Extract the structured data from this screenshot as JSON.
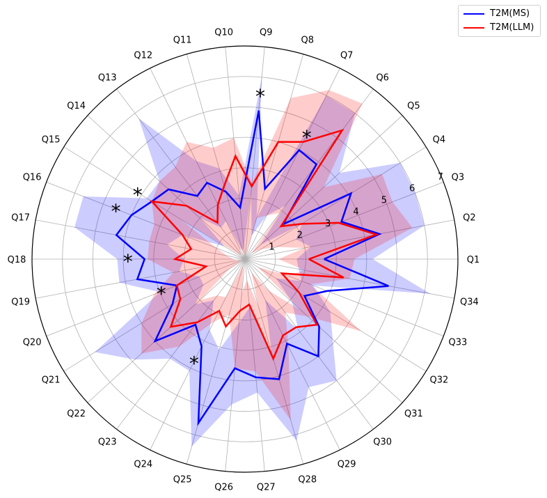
{
  "chart_data": {
    "type": "radar",
    "categories": [
      "Q1",
      "Q2",
      "Q3",
      "Q4",
      "Q5",
      "Q6",
      "Q7",
      "Q8",
      "Q9",
      "Q10",
      "Q11",
      "Q12",
      "Q13",
      "Q14",
      "Q15",
      "Q16",
      "Q17",
      "Q18",
      "Q19",
      "Q20",
      "Q21",
      "Q22",
      "Q23",
      "Q24",
      "Q25",
      "Q26",
      "Q27",
      "Q28",
      "Q29",
      "Q30",
      "Q31",
      "Q32",
      "Q33",
      "Q34"
    ],
    "r_ticks": [
      "1",
      "2",
      "3",
      "4",
      "5",
      "6",
      "7"
    ],
    "r_range": [
      0,
      7
    ],
    "grid": true,
    "legend_position": "top-right",
    "series": [
      {
        "name": "T2M(MS)",
        "color": "#0000ff",
        "values": [
          2.6,
          4.5,
          3.4,
          4.1,
          1.7,
          3.9,
          4.0,
          2.4,
          4.9,
          1.7,
          2.3,
          2.8,
          2.6,
          3.4,
          3.6,
          4.0,
          4.3,
          3.3,
          3.6,
          2.4,
          2.8,
          4.0,
          2.7,
          3.2,
          5.6,
          3.6,
          3.9,
          4.1,
          3.1,
          4.0,
          3.3,
          2.3,
          2.9,
          4.8
        ],
        "band_min": [
          1.7,
          2.2,
          1.8,
          2.2,
          0.7,
          2.2,
          1.6,
          0.8,
          2.2,
          0.4,
          0.3,
          1.4,
          1.3,
          2.0,
          0.8,
          2.2,
          2.6,
          2.0,
          2.2,
          1.6,
          1.6,
          2.2,
          1.7,
          2.6,
          3.1,
          2.1,
          1.6,
          3.2,
          1.5,
          2.9,
          2.1,
          1.2,
          2.0,
          1.8
        ],
        "band_max": [
          4.2,
          6.0,
          6.0,
          6.0,
          4.2,
          6.0,
          6.0,
          1.4,
          6.0,
          2.1,
          3.1,
          3.6,
          5.8,
          3.8,
          3.8,
          5.7,
          5.7,
          4.2,
          4.2,
          3.0,
          5.8,
          4.9,
          4.1,
          4.1,
          6.4,
          4.8,
          4.4,
          6.2,
          4.7,
          5.0,
          3.9,
          3.3,
          2.4,
          6.2
        ]
      },
      {
        "name": "T2M(LLM)",
        "color": "#ff0000",
        "values": [
          2.1,
          4.4,
          3.3,
          2.2,
          1.6,
          5.3,
          4.3,
          4.0,
          2.4,
          3.4,
          2.5,
          2.0,
          1.5,
          2.6,
          3.6,
          2.2,
          1.8,
          2.3,
          1.3,
          2.4,
          2.5,
          3.3,
          2.6,
          1.9,
          2.3,
          1.7,
          1.5,
          3.4,
          2.8,
          2.8,
          3.2,
          2.1,
          1.3,
          3.3
        ],
        "band_min": [
          1.1,
          2.0,
          1.1,
          0.6,
          0.3,
          1.9,
          1.6,
          1.4,
          0.1,
          0.2,
          0.3,
          0.4,
          0.2,
          0.2,
          2.5,
          1.0,
          0.6,
          0.4,
          0.3,
          0.1,
          0.6,
          2.0,
          1.5,
          1.4,
          0.2,
          1.1,
          0.7,
          1.6,
          0.5,
          1.3,
          2.5,
          0.5,
          1.5,
          2.0
        ],
        "band_max": [
          3.6,
          5.6,
          5.2,
          5.3,
          3.5,
          6.4,
          6.2,
          5.5,
          2.5,
          4.0,
          3.8,
          4.3,
          3.8,
          3.8,
          3.6,
          3.2,
          3.2,
          3.2,
          2.4,
          3.2,
          4.0,
          4.6,
          3.6,
          2.3,
          1.9,
          3.6,
          3.7,
          5.5,
          3.2,
          2.2,
          2.8,
          4.5,
          2.3,
          3.5
        ]
      }
    ],
    "significance_marker": "*",
    "significant_items": [
      "Q7",
      "Q9",
      "Q15",
      "Q16",
      "Q18",
      "Q20",
      "Q24"
    ]
  }
}
